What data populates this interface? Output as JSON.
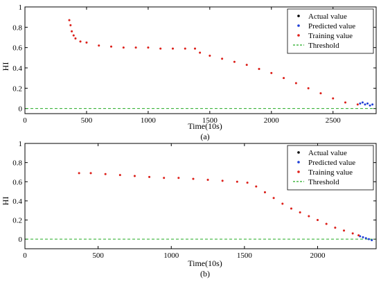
{
  "chart_data": [
    {
      "type": "scatter",
      "panel_label": "(a)",
      "xlabel": "Time(10s)",
      "ylabel": "HI",
      "xlim": [
        0,
        2850
      ],
      "ylim": [
        -0.05,
        1.0
      ],
      "xticks": [
        0,
        500,
        1000,
        1500,
        2000,
        2500
      ],
      "yticks": [
        0.0,
        0.2,
        0.4,
        0.6,
        0.8,
        1.0
      ],
      "legend_position": "top-right",
      "threshold": 0.0,
      "legend": [
        {
          "key": "actual",
          "label": "Actual value",
          "color": "#000000",
          "marker": "dot"
        },
        {
          "key": "predicted",
          "label": "Predicted value",
          "color": "#1f3fd6",
          "marker": "dot"
        },
        {
          "key": "training",
          "label": "Training value",
          "color": "#e0201a",
          "marker": "dot"
        },
        {
          "key": "threshold",
          "label": "Threshold",
          "color": "#22aa22",
          "marker": "dashed-line"
        }
      ],
      "series": [
        {
          "name": "Actual value",
          "x": [
            360,
            370,
            380,
            395,
            410,
            450,
            500,
            600,
            700,
            800,
            900,
            1000,
            1100,
            1200,
            1300,
            1380,
            1420,
            1500,
            1600,
            1700,
            1800,
            1900,
            2000,
            2100,
            2200,
            2300,
            2400,
            2500,
            2600,
            2700
          ],
          "y": [
            0.87,
            0.82,
            0.76,
            0.72,
            0.69,
            0.66,
            0.65,
            0.62,
            0.61,
            0.6,
            0.6,
            0.6,
            0.59,
            0.59,
            0.59,
            0.59,
            0.55,
            0.52,
            0.49,
            0.46,
            0.43,
            0.39,
            0.35,
            0.3,
            0.25,
            0.2,
            0.15,
            0.1,
            0.06,
            0.04
          ]
        },
        {
          "name": "Predicted value",
          "x": [
            2720,
            2740,
            2760,
            2780,
            2800,
            2820
          ],
          "y": [
            0.05,
            0.06,
            0.04,
            0.05,
            0.03,
            0.04
          ]
        },
        {
          "name": "Training value",
          "x": [
            360,
            370,
            380,
            395,
            410,
            450,
            500,
            600,
            700,
            800,
            900,
            1000,
            1100,
            1200,
            1300,
            1380,
            1420,
            1500,
            1600,
            1700,
            1800,
            1900,
            2000,
            2100,
            2200,
            2300,
            2400,
            2500,
            2600,
            2700
          ],
          "y": [
            0.87,
            0.82,
            0.76,
            0.72,
            0.69,
            0.66,
            0.65,
            0.62,
            0.61,
            0.6,
            0.6,
            0.6,
            0.59,
            0.59,
            0.59,
            0.59,
            0.55,
            0.52,
            0.49,
            0.46,
            0.43,
            0.39,
            0.35,
            0.3,
            0.25,
            0.2,
            0.15,
            0.1,
            0.06,
            0.04
          ]
        }
      ]
    },
    {
      "type": "scatter",
      "panel_label": "(b)",
      "xlabel": "Time(10s)",
      "ylabel": "HI",
      "xlim": [
        0,
        2400
      ],
      "ylim": [
        -0.1,
        1.0
      ],
      "xticks": [
        0,
        500,
        1000,
        1500,
        2000
      ],
      "yticks": [
        0.0,
        0.2,
        0.4,
        0.6,
        0.8,
        1.0
      ],
      "legend_position": "top-right",
      "threshold": 0.0,
      "legend": [
        {
          "key": "actual",
          "label": "Actual value",
          "color": "#000000",
          "marker": "dot"
        },
        {
          "key": "predicted",
          "label": "Predicted value",
          "color": "#1f3fd6",
          "marker": "dot"
        },
        {
          "key": "training",
          "label": "Training value",
          "color": "#e0201a",
          "marker": "dot"
        },
        {
          "key": "threshold",
          "label": "Threshold",
          "color": "#22aa22",
          "marker": "dashed-line"
        }
      ],
      "series": [
        {
          "name": "Actual value",
          "x": [
            370,
            450,
            550,
            650,
            750,
            850,
            950,
            1050,
            1150,
            1250,
            1350,
            1450,
            1520,
            1580,
            1640,
            1700,
            1760,
            1820,
            1880,
            1940,
            2000,
            2060,
            2120,
            2180,
            2240,
            2280
          ],
          "y": [
            0.69,
            0.69,
            0.68,
            0.67,
            0.66,
            0.65,
            0.64,
            0.64,
            0.63,
            0.62,
            0.61,
            0.6,
            0.59,
            0.55,
            0.49,
            0.43,
            0.37,
            0.32,
            0.28,
            0.24,
            0.2,
            0.16,
            0.12,
            0.09,
            0.06,
            0.04
          ]
        },
        {
          "name": "Predicted value",
          "x": [
            2290,
            2310,
            2330,
            2350,
            2370
          ],
          "y": [
            0.03,
            0.02,
            0.01,
            0.0,
            -0.01
          ]
        },
        {
          "name": "Training value",
          "x": [
            370,
            450,
            550,
            650,
            750,
            850,
            950,
            1050,
            1150,
            1250,
            1350,
            1450,
            1520,
            1580,
            1640,
            1700,
            1760,
            1820,
            1880,
            1940,
            2000,
            2060,
            2120,
            2180,
            2240,
            2280
          ],
          "y": [
            0.69,
            0.69,
            0.68,
            0.67,
            0.66,
            0.65,
            0.64,
            0.64,
            0.63,
            0.62,
            0.61,
            0.6,
            0.59,
            0.55,
            0.49,
            0.43,
            0.37,
            0.32,
            0.28,
            0.24,
            0.2,
            0.16,
            0.12,
            0.09,
            0.06,
            0.04
          ]
        }
      ]
    }
  ]
}
